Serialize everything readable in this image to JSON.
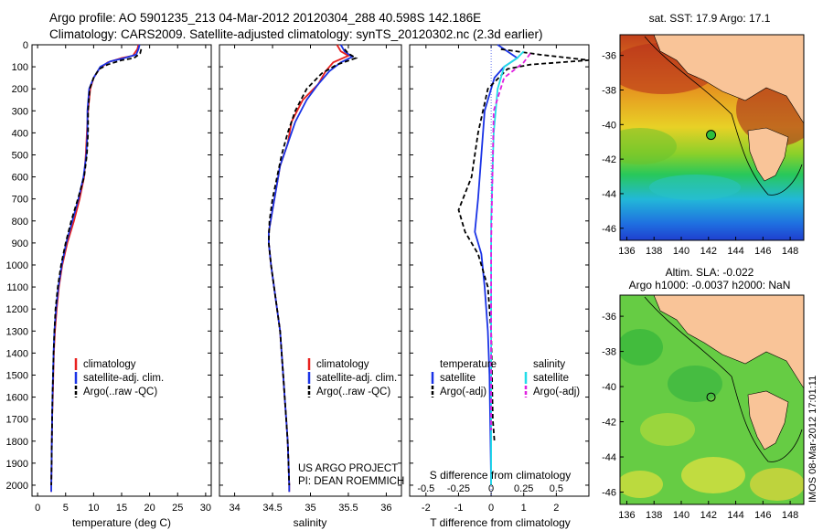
{
  "header": {
    "line1": "Argo profile: AO 5901235_213 04-Mar-2012 20120304_288 40.598S 142.186E",
    "line2": "Climatology: CARS2009. Satellite-adjusted climatology: synTS_20120302.nc (2.3d earlier)"
  },
  "project": {
    "line1": "US ARGO PROJECT",
    "line2": "PI: DEAN ROEMMICH"
  },
  "side_text": "IMOS 08-Mar-2012 17:01:11",
  "colors": {
    "climatology": "#e8201e",
    "satellite": "#1a33e6",
    "argo": "#000000",
    "salinity_sat": "#22dde8",
    "salinity_argo": "#e020e0",
    "land": "#f9c498"
  },
  "chart_data": [
    {
      "type": "line",
      "id": "temperature",
      "xlabel": "temperature (deg C)",
      "ylabel": "",
      "xlim": [
        -1,
        31
      ],
      "ylim": [
        2050,
        0
      ],
      "xticks": [
        0,
        5,
        10,
        15,
        20,
        25,
        30
      ],
      "yticks": [
        0,
        100,
        200,
        300,
        400,
        500,
        600,
        700,
        800,
        900,
        1000,
        1100,
        1200,
        1300,
        1400,
        1500,
        1600,
        1700,
        1800,
        1900,
        2000
      ],
      "legend": [
        "climatology",
        "satellite-adj. clim.",
        "Argo(..raw -QC)"
      ],
      "series": [
        {
          "name": "climatology",
          "color": "#e8201e",
          "dash": false,
          "points": [
            [
              18,
              0
            ],
            [
              17.8,
              20
            ],
            [
              17,
              50
            ],
            [
              15,
              60
            ],
            [
              12.5,
              80
            ],
            [
              11,
              110
            ],
            [
              10,
              150
            ],
            [
              9.4,
              200
            ],
            [
              9,
              300
            ],
            [
              8.8,
              400
            ],
            [
              8.6,
              500
            ],
            [
              8.3,
              600
            ],
            [
              7.5,
              700
            ],
            [
              6.5,
              800
            ],
            [
              5.3,
              900
            ],
            [
              4.4,
              1000
            ],
            [
              3.8,
              1100
            ],
            [
              3.4,
              1200
            ],
            [
              3.1,
              1300
            ],
            [
              2.9,
              1400
            ],
            [
              2.8,
              1500
            ],
            [
              2.7,
              1600
            ],
            [
              2.6,
              1700
            ],
            [
              2.55,
              1800
            ],
            [
              2.5,
              1900
            ],
            [
              2.45,
              2000
            ],
            [
              2.45,
              2030
            ]
          ]
        },
        {
          "name": "satellite-adj. clim.",
          "color": "#1a33e6",
          "dash": false,
          "points": [
            [
              18.2,
              0
            ],
            [
              18,
              20
            ],
            [
              17.6,
              45
            ],
            [
              15.5,
              60
            ],
            [
              13,
              75
            ],
            [
              11.2,
              100
            ],
            [
              10,
              150
            ],
            [
              9.2,
              200
            ],
            [
              8.9,
              300
            ],
            [
              8.9,
              400
            ],
            [
              8.7,
              500
            ],
            [
              8.2,
              600
            ],
            [
              7.3,
              700
            ],
            [
              6.2,
              800
            ],
            [
              5.1,
              900
            ],
            [
              4.3,
              1000
            ],
            [
              3.7,
              1100
            ],
            [
              3.3,
              1200
            ],
            [
              3.0,
              1300
            ],
            [
              2.85,
              1400
            ],
            [
              2.75,
              1500
            ],
            [
              2.65,
              1600
            ],
            [
              2.6,
              1700
            ],
            [
              2.55,
              1800
            ],
            [
              2.5,
              1900
            ],
            [
              2.45,
              2000
            ],
            [
              2.45,
              2030
            ]
          ]
        },
        {
          "name": "Argo(..raw -QC)",
          "color": "#000000",
          "dash": true,
          "points": [
            [
              18.5,
              20
            ],
            [
              18.3,
              40
            ],
            [
              17.2,
              60
            ],
            [
              15,
              70
            ],
            [
              12.5,
              90
            ],
            [
              11,
              110
            ],
            [
              10,
              150
            ],
            [
              9.3,
              200
            ],
            [
              9,
              300
            ],
            [
              9,
              400
            ],
            [
              8.8,
              500
            ],
            [
              8.3,
              600
            ],
            [
              7.2,
              700
            ],
            [
              6,
              800
            ],
            [
              5,
              900
            ],
            [
              4.2,
              1000
            ],
            [
              3.6,
              1100
            ],
            [
              3.2,
              1200
            ],
            [
              3.0,
              1300
            ],
            [
              2.85,
              1400
            ],
            [
              2.75,
              1500
            ],
            [
              2.65,
              1600
            ],
            [
              2.6,
              1700
            ],
            [
              2.55,
              1800
            ],
            [
              2.5,
              1900
            ],
            [
              2.45,
              2000
            ]
          ]
        }
      ]
    },
    {
      "type": "line",
      "id": "salinity",
      "xlabel": "salinity",
      "ylabel": "",
      "xlim": [
        33.8,
        36.2
      ],
      "ylim": [
        2050,
        0
      ],
      "xticks": [
        34,
        34.5,
        35,
        35.5,
        36
      ],
      "legend": [
        "climatology",
        "satellite-adj. clim.",
        "Argo(..raw -QC)"
      ],
      "series": [
        {
          "name": "climatology",
          "color": "#e8201e",
          "dash": false,
          "points": [
            [
              35.35,
              0
            ],
            [
              35.4,
              30
            ],
            [
              35.5,
              50
            ],
            [
              35.3,
              80
            ],
            [
              35.2,
              120
            ],
            [
              35.1,
              180
            ],
            [
              34.9,
              250
            ],
            [
              34.75,
              350
            ],
            [
              34.7,
              450
            ],
            [
              34.6,
              550
            ],
            [
              34.55,
              650
            ],
            [
              34.5,
              750
            ],
            [
              34.45,
              850
            ],
            [
              34.45,
              900
            ],
            [
              34.48,
              1000
            ],
            [
              34.52,
              1100
            ],
            [
              34.56,
              1200
            ],
            [
              34.6,
              1300
            ],
            [
              34.62,
              1400
            ],
            [
              34.64,
              1500
            ],
            [
              34.66,
              1600
            ],
            [
              34.68,
              1700
            ],
            [
              34.7,
              1800
            ],
            [
              34.71,
              1900
            ],
            [
              34.72,
              2000
            ],
            [
              34.72,
              2030
            ]
          ]
        },
        {
          "name": "satellite-adj. clim.",
          "color": "#1a33e6",
          "dash": false,
          "points": [
            [
              35.4,
              0
            ],
            [
              35.45,
              30
            ],
            [
              35.55,
              55
            ],
            [
              35.4,
              80
            ],
            [
              35.25,
              120
            ],
            [
              35.1,
              180
            ],
            [
              34.95,
              250
            ],
            [
              34.8,
              350
            ],
            [
              34.7,
              450
            ],
            [
              34.6,
              550
            ],
            [
              34.55,
              650
            ],
            [
              34.5,
              750
            ],
            [
              34.45,
              850
            ],
            [
              34.45,
              900
            ],
            [
              34.48,
              1000
            ],
            [
              34.52,
              1100
            ],
            [
              34.56,
              1200
            ],
            [
              34.6,
              1300
            ],
            [
              34.62,
              1400
            ],
            [
              34.64,
              1500
            ],
            [
              34.66,
              1600
            ],
            [
              34.68,
              1700
            ],
            [
              34.7,
              1800
            ],
            [
              34.71,
              1900
            ],
            [
              34.72,
              2000
            ],
            [
              34.72,
              2030
            ]
          ]
        },
        {
          "name": "Argo(..raw -QC)",
          "color": "#000000",
          "dash": true,
          "points": [
            [
              35.45,
              20
            ],
            [
              35.5,
              40
            ],
            [
              35.6,
              60
            ],
            [
              35.35,
              90
            ],
            [
              35.15,
              130
            ],
            [
              34.95,
              200
            ],
            [
              34.8,
              300
            ],
            [
              34.7,
              400
            ],
            [
              34.62,
              500
            ],
            [
              34.56,
              600
            ],
            [
              34.5,
              700
            ],
            [
              34.46,
              800
            ],
            [
              34.45,
              900
            ],
            [
              34.48,
              1000
            ],
            [
              34.52,
              1100
            ],
            [
              34.56,
              1200
            ],
            [
              34.6,
              1300
            ],
            [
              34.62,
              1400
            ],
            [
              34.64,
              1500
            ],
            [
              34.66,
              1600
            ],
            [
              34.68,
              1700
            ],
            [
              34.7,
              1800
            ],
            [
              34.71,
              1900
            ],
            [
              34.72,
              2000
            ]
          ]
        }
      ]
    },
    {
      "type": "line",
      "id": "difference",
      "xlabel": "T difference from climatology",
      "x2label": "S difference from climatology",
      "xlim": [
        -2.5,
        3
      ],
      "x2lim": [
        -0.625,
        0.75
      ],
      "ylim": [
        2050,
        0
      ],
      "xticks": [
        -2,
        -1,
        0,
        1,
        2
      ],
      "x2ticks": [
        -0.5,
        -0.25,
        0,
        0.25,
        0.5
      ],
      "x2ticklabels": [
        "-0.5",
        "-0.25",
        "0",
        "0.25",
        "0.5"
      ],
      "legend_titles": [
        "temperature",
        "salinity"
      ],
      "legend": [
        "satellite",
        "Argo(-adj)",
        "satellite",
        "Argo(-adj)"
      ],
      "series": [
        {
          "name": "temperature satellite",
          "color": "#1a33e6",
          "dash": false,
          "points": [
            [
              0.2,
              0
            ],
            [
              0.5,
              30
            ],
            [
              0.8,
              60
            ],
            [
              0.4,
              100
            ],
            [
              0.1,
              150
            ],
            [
              -0.2,
              300
            ],
            [
              -0.3,
              500
            ],
            [
              -0.4,
              700
            ],
            [
              -0.5,
              850
            ],
            [
              -0.3,
              950
            ],
            [
              -0.2,
              1100
            ],
            [
              -0.1,
              1300
            ],
            [
              -0.05,
              1500
            ],
            [
              0,
              2000
            ]
          ]
        },
        {
          "name": "temperature Argo(-adj)",
          "color": "#000000",
          "dash": true,
          "points": [
            [
              0.3,
              20
            ],
            [
              1.5,
              45
            ],
            [
              3,
              70
            ],
            [
              1.2,
              90
            ],
            [
              0.5,
              110
            ],
            [
              -0.1,
              200
            ],
            [
              -0.4,
              400
            ],
            [
              -0.6,
              600
            ],
            [
              -1.0,
              750
            ],
            [
              -0.8,
              850
            ],
            [
              -0.4,
              950
            ],
            [
              -0.1,
              1100
            ],
            [
              0,
              1300
            ],
            [
              0.05,
              1700
            ],
            [
              0.1,
              1800
            ]
          ]
        },
        {
          "name": "salinity satellite",
          "color": "#22dde8",
          "dash": false,
          "points": [
            [
              0.25,
              30
            ],
            [
              0.2,
              60
            ],
            [
              0.1,
              100
            ],
            [
              0.05,
              200
            ],
            [
              0.02,
              400
            ],
            [
              0,
              800
            ],
            [
              0,
              2000
            ]
          ]
        },
        {
          "name": "salinity Argo(-adj)",
          "color": "#e020e0",
          "dash": true,
          "points": [
            [
              0.3,
              40
            ],
            [
              0.25,
              80
            ],
            [
              0.1,
              150
            ],
            [
              0.02,
              300
            ],
            [
              0.01,
              600
            ],
            [
              0,
              900
            ],
            [
              0,
              1500
            ],
            [
              0,
              1750
            ]
          ]
        }
      ]
    }
  ],
  "maps": [
    {
      "id": "sst",
      "title": "sat. SST: 17.9 Argo: 17.1",
      "subtitle": "",
      "xticks": [
        136,
        138,
        140,
        142,
        144,
        146,
        148
      ],
      "yticks": [
        -36,
        -38,
        -40,
        -42,
        -44,
        -46
      ],
      "xlim": [
        135.5,
        149
      ],
      "ylim": [
        -46.7,
        -34.8
      ],
      "argo_lon": 142.186,
      "argo_lat": -40.598
    },
    {
      "id": "sla",
      "title": "Altim. SLA: -0.022",
      "subtitle": "Argo h1000: -0.0037 h2000: NaN",
      "xticks": [
        136,
        138,
        140,
        142,
        144,
        146,
        148
      ],
      "yticks": [
        -36,
        -38,
        -40,
        -42,
        -44,
        -46
      ],
      "xlim": [
        135.5,
        149
      ],
      "ylim": [
        -46.7,
        -34.8
      ],
      "argo_lon": 142.186,
      "argo_lat": -40.598
    }
  ]
}
